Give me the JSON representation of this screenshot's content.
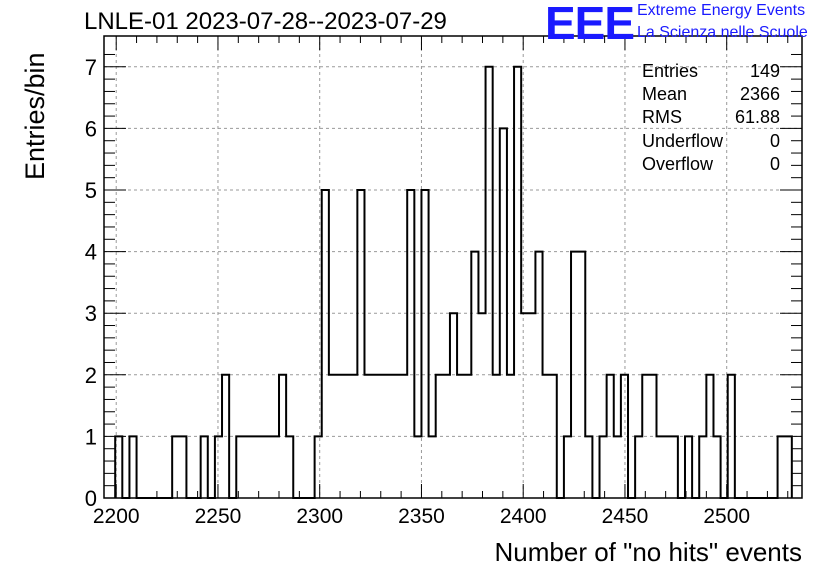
{
  "header": {
    "title": "LNLE-01 2023-07-28--2023-07-29"
  },
  "logo": {
    "mark": "EEE",
    "line1": "Extreme Energy Events",
    "line2": "La Scienza nelle Scuole",
    "color": "#1a1aff"
  },
  "stats": [
    {
      "label": "Entries",
      "value": "149"
    },
    {
      "label": "Mean",
      "value": "2366"
    },
    {
      "label": "RMS",
      "value": "61.88"
    },
    {
      "label": "Underflow",
      "value": "0"
    },
    {
      "label": "Overflow",
      "value": "0"
    }
  ],
  "chart_data": {
    "type": "histogram",
    "xlabel": "Number of \"no hits\" events",
    "ylabel": "Entries/bin",
    "xlim": [
      2194,
      2537
    ],
    "ylim": [
      0,
      7.5
    ],
    "bin_width": 3.5,
    "bin_start": 2199.5,
    "counts": [
      1,
      0,
      1,
      0,
      0,
      0,
      0,
      0,
      1,
      1,
      0,
      0,
      1,
      0,
      1,
      2,
      0,
      1,
      1,
      1,
      1,
      1,
      1,
      2,
      1,
      0,
      0,
      0,
      1,
      5,
      2,
      2,
      2,
      2,
      5,
      2,
      2,
      2,
      2,
      2,
      2,
      5,
      1,
      5,
      1,
      2,
      2,
      3,
      2,
      2,
      4,
      3,
      7,
      2,
      6,
      2,
      7,
      3,
      3,
      4,
      2,
      2,
      0,
      1,
      4,
      4,
      1,
      0,
      1,
      2,
      1,
      2,
      0,
      1,
      2,
      2,
      1,
      1,
      1,
      0,
      1,
      0,
      1,
      2,
      1,
      0,
      2,
      0,
      0,
      0,
      0,
      0,
      0,
      1,
      1
    ],
    "xticks": [
      2200,
      2250,
      2300,
      2350,
      2400,
      2450,
      2500
    ],
    "yticks": [
      0,
      1,
      2,
      3,
      4,
      5,
      6,
      7
    ],
    "grid": true,
    "line_color": "#000000"
  }
}
